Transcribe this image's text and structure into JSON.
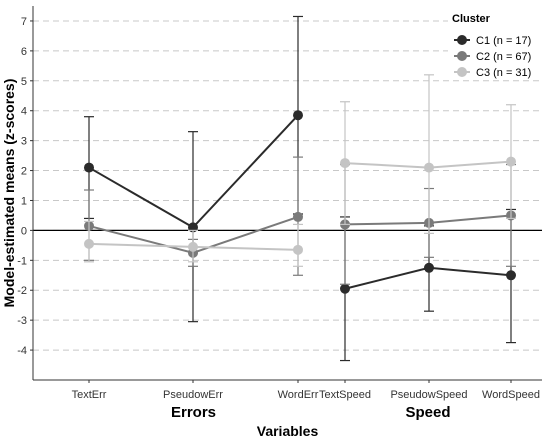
{
  "chart_data": {
    "type": "line",
    "xlabel": "Variables",
    "ylabel": "Model-estimated means (z-scores)",
    "ylim": [
      -5,
      7.5
    ],
    "y_ticks": [
      -4,
      -3,
      -2,
      -1,
      0,
      1,
      2,
      3,
      4,
      5,
      6,
      7
    ],
    "grid": "horizontal-dashed",
    "reference_line_y": 0,
    "categories": [
      "TextErr",
      "PseudowErr",
      "WordErr",
      "TextSpeed",
      "PseudowSpeed",
      "WordSpeed"
    ],
    "groups": [
      {
        "label": "Errors",
        "categories": [
          "TextErr",
          "PseudowErr",
          "WordErr"
        ]
      },
      {
        "label": "Speed",
        "categories": [
          "TextSpeed",
          "PseudowSpeed",
          "WordSpeed"
        ]
      }
    ],
    "legend": {
      "title": "Cluster",
      "position": "top-right"
    },
    "series": [
      {
        "name": "C1 (n = 17)",
        "color": "#2b2b2b",
        "values": [
          2.1,
          0.1,
          3.85,
          -1.95,
          -1.25,
          -1.5
        ],
        "err_low": [
          0.4,
          -3.05,
          0.55,
          -4.35,
          -2.7,
          -3.75
        ],
        "err_high": [
          3.8,
          3.3,
          7.15,
          0.45,
          0.15,
          0.7
        ]
      },
      {
        "name": "C2 (n = 67)",
        "color": "#7a7a7a",
        "values": [
          0.15,
          -0.75,
          0.45,
          0.2,
          0.25,
          0.5
        ],
        "err_low": [
          -1.0,
          -1.2,
          -1.5,
          -1.8,
          -0.9,
          -1.2
        ],
        "err_high": [
          1.35,
          -0.3,
          2.45,
          2.2,
          1.4,
          2.2
        ]
      },
      {
        "name": "C3 (n = 31)",
        "color": "#c4c4c4",
        "values": [
          -0.45,
          -0.55,
          -0.65,
          2.25,
          2.1,
          2.3
        ],
        "err_low": [
          -1.05,
          -1.05,
          -1.2,
          0.2,
          -0.1,
          0.4
        ],
        "err_high": [
          0.3,
          0.0,
          0.2,
          4.3,
          5.2,
          4.2
        ]
      }
    ]
  }
}
